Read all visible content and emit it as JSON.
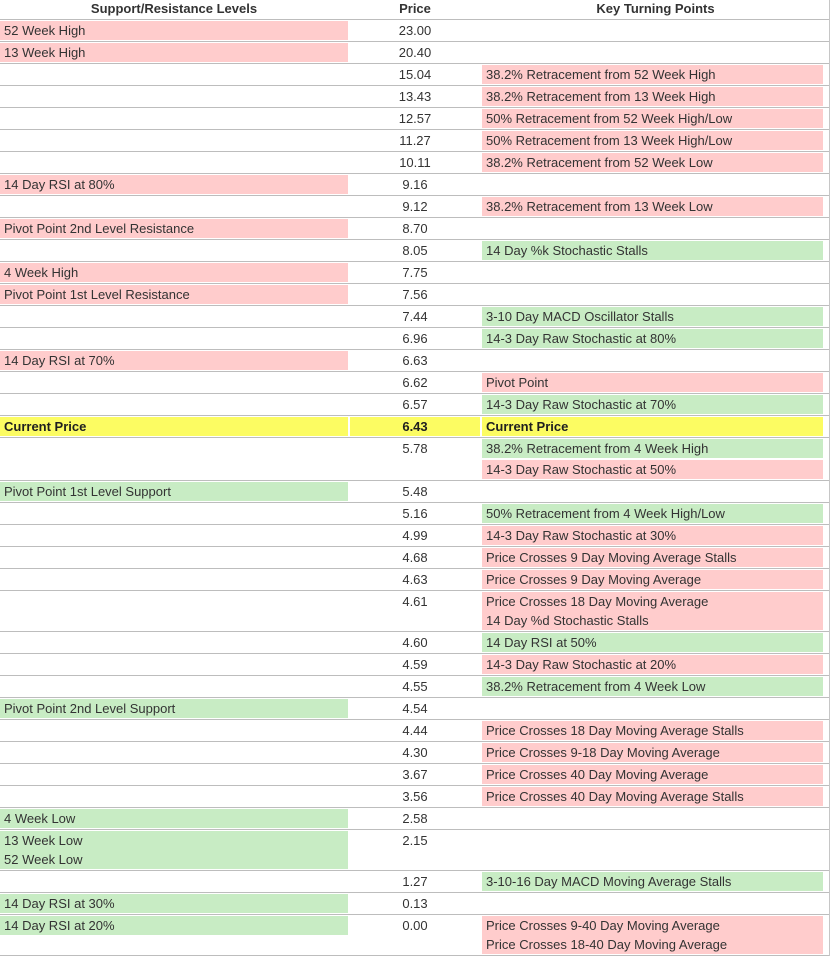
{
  "header": {
    "col1": "Support/Resistance Levels",
    "col2": "Price",
    "col3": "Key Turning Points"
  },
  "colors": {
    "resistance_pink": "#ffcccc",
    "support_green": "#c8ecc4",
    "current_price_yellow": "#fcfc62",
    "row_border_gray": "#bdbdbd",
    "text": "#333333"
  },
  "current_price": "6.43",
  "rows": [
    {
      "left": [
        {
          "c": "r",
          "lines": [
            "52 Week High"
          ]
        }
      ],
      "price": "23.00",
      "right": []
    },
    {
      "left": [
        {
          "c": "r",
          "lines": [
            "13 Week High"
          ]
        }
      ],
      "price": "20.40",
      "right": []
    },
    {
      "left": [],
      "price": "15.04",
      "right": [
        {
          "c": "r",
          "lines": [
            "38.2% Retracement from 52 Week High"
          ]
        }
      ]
    },
    {
      "left": [],
      "price": "13.43",
      "right": [
        {
          "c": "r",
          "lines": [
            "38.2% Retracement from 13 Week High"
          ]
        }
      ]
    },
    {
      "left": [],
      "price": "12.57",
      "right": [
        {
          "c": "r",
          "lines": [
            "50% Retracement from 52 Week High/Low"
          ]
        }
      ]
    },
    {
      "left": [],
      "price": "11.27",
      "right": [
        {
          "c": "r",
          "lines": [
            "50% Retracement from 13 Week High/Low"
          ]
        }
      ]
    },
    {
      "left": [],
      "price": "10.11",
      "right": [
        {
          "c": "r",
          "lines": [
            "38.2% Retracement from 52 Week Low"
          ]
        }
      ]
    },
    {
      "left": [
        {
          "c": "r",
          "lines": [
            "14 Day RSI at 80%"
          ]
        }
      ],
      "price": "9.16",
      "right": []
    },
    {
      "left": [],
      "price": "9.12",
      "right": [
        {
          "c": "r",
          "lines": [
            "38.2% Retracement from 13 Week Low"
          ]
        }
      ]
    },
    {
      "left": [
        {
          "c": "r",
          "lines": [
            "Pivot Point 2nd Level Resistance"
          ]
        }
      ],
      "price": "8.70",
      "right": []
    },
    {
      "left": [],
      "price": "8.05",
      "right": [
        {
          "c": "g",
          "lines": [
            "14 Day %k Stochastic Stalls"
          ]
        }
      ]
    },
    {
      "left": [
        {
          "c": "r",
          "lines": [
            "4 Week High"
          ]
        }
      ],
      "price": "7.75",
      "right": []
    },
    {
      "left": [
        {
          "c": "r",
          "lines": [
            "Pivot Point 1st Level Resistance"
          ]
        }
      ],
      "price": "7.56",
      "right": []
    },
    {
      "left": [],
      "price": "7.44",
      "right": [
        {
          "c": "g",
          "lines": [
            "3-10 Day MACD Oscillator Stalls"
          ]
        }
      ]
    },
    {
      "left": [],
      "price": "6.96",
      "right": [
        {
          "c": "g",
          "lines": [
            "14-3 Day Raw Stochastic at 80%"
          ]
        }
      ]
    },
    {
      "left": [
        {
          "c": "r",
          "lines": [
            "14 Day RSI at 70%"
          ]
        }
      ],
      "price": "6.63",
      "right": []
    },
    {
      "left": [],
      "price": "6.62",
      "right": [
        {
          "c": "r",
          "lines": [
            "Pivot Point"
          ]
        }
      ]
    },
    {
      "left": [],
      "price": "6.57",
      "right": [
        {
          "c": "g",
          "lines": [
            "14-3 Day Raw Stochastic at 70%"
          ]
        }
      ]
    },
    {
      "bold": true,
      "price_c": "y",
      "left": [
        {
          "c": "y",
          "lines": [
            "Current Price"
          ]
        }
      ],
      "price": "6.43",
      "right": [
        {
          "c": "y",
          "lines": [
            "Current Price"
          ]
        }
      ]
    },
    {
      "left": [],
      "price": "5.78",
      "right": [
        {
          "c": "g",
          "lines": [
            "38.2% Retracement from 4 Week High"
          ]
        },
        {
          "c": "r",
          "lines": [
            "14-3 Day Raw Stochastic at 50%"
          ]
        }
      ]
    },
    {
      "left": [
        {
          "c": "g",
          "lines": [
            "Pivot Point 1st Level Support"
          ]
        }
      ],
      "price": "5.48",
      "right": []
    },
    {
      "left": [],
      "price": "5.16",
      "right": [
        {
          "c": "g",
          "lines": [
            "50% Retracement from 4 Week High/Low"
          ]
        }
      ]
    },
    {
      "left": [],
      "price": "4.99",
      "right": [
        {
          "c": "r",
          "lines": [
            "14-3 Day Raw Stochastic at 30%"
          ]
        }
      ]
    },
    {
      "left": [],
      "price": "4.68",
      "right": [
        {
          "c": "r",
          "lines": [
            "Price Crosses 9 Day Moving Average Stalls"
          ]
        }
      ]
    },
    {
      "left": [],
      "price": "4.63",
      "right": [
        {
          "c": "r",
          "lines": [
            "Price Crosses 9 Day Moving Average"
          ]
        }
      ]
    },
    {
      "left": [],
      "price": "4.61",
      "right": [
        {
          "c": "r",
          "lines": [
            "Price Crosses 18 Day Moving Average",
            "14 Day %d Stochastic Stalls"
          ]
        }
      ]
    },
    {
      "left": [],
      "price": "4.60",
      "right": [
        {
          "c": "g",
          "lines": [
            "14 Day RSI at 50%"
          ]
        }
      ]
    },
    {
      "left": [],
      "price": "4.59",
      "right": [
        {
          "c": "r",
          "lines": [
            "14-3 Day Raw Stochastic at 20%"
          ]
        }
      ]
    },
    {
      "left": [],
      "price": "4.55",
      "right": [
        {
          "c": "g",
          "lines": [
            "38.2% Retracement from 4 Week Low"
          ]
        }
      ]
    },
    {
      "left": [
        {
          "c": "g",
          "lines": [
            "Pivot Point 2nd Level Support"
          ]
        }
      ],
      "price": "4.54",
      "right": []
    },
    {
      "left": [],
      "price": "4.44",
      "right": [
        {
          "c": "r",
          "lines": [
            "Price Crosses 18 Day Moving Average Stalls"
          ]
        }
      ]
    },
    {
      "left": [],
      "price": "4.30",
      "right": [
        {
          "c": "r",
          "lines": [
            "Price Crosses 9-18 Day Moving Average"
          ]
        }
      ]
    },
    {
      "left": [],
      "price": "3.67",
      "right": [
        {
          "c": "r",
          "lines": [
            "Price Crosses 40 Day Moving Average"
          ]
        }
      ]
    },
    {
      "left": [],
      "price": "3.56",
      "right": [
        {
          "c": "r",
          "lines": [
            "Price Crosses 40 Day Moving Average Stalls"
          ]
        }
      ]
    },
    {
      "left": [
        {
          "c": "g",
          "lines": [
            "4 Week Low"
          ]
        }
      ],
      "price": "2.58",
      "right": []
    },
    {
      "left": [
        {
          "c": "g",
          "lines": [
            "13 Week Low",
            "52 Week Low"
          ]
        }
      ],
      "price": "2.15",
      "right": []
    },
    {
      "left": [],
      "price": "1.27",
      "right": [
        {
          "c": "g",
          "lines": [
            "3-10-16 Day MACD Moving Average Stalls"
          ]
        }
      ]
    },
    {
      "left": [
        {
          "c": "g",
          "lines": [
            "14 Day RSI at 30%"
          ]
        }
      ],
      "price": "0.13",
      "right": []
    },
    {
      "left": [
        {
          "c": "g",
          "lines": [
            "14 Day RSI at 20%"
          ]
        }
      ],
      "price": "0.00",
      "right": [
        {
          "c": "r",
          "lines": [
            "Price Crosses 9-40 Day Moving Average",
            "Price Crosses 18-40 Day Moving Average"
          ]
        }
      ]
    }
  ]
}
